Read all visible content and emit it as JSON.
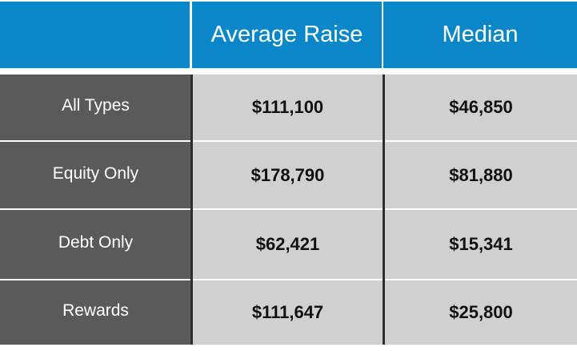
{
  "colors": {
    "header_bg": "#0a87c8",
    "label_bg": "#5a5a5a",
    "value_bg": "#d0d0d0",
    "header_text": "#ffffff",
    "value_text": "#111111"
  },
  "chart_data": {
    "type": "table",
    "columns": [
      "",
      "Average Raise",
      "Median"
    ],
    "rows": [
      {
        "label": "All Types",
        "average_raise": "$111,100",
        "median": "$46,850"
      },
      {
        "label": "Equity Only",
        "average_raise": "$178,790",
        "median": "$81,880"
      },
      {
        "label": "Debt Only",
        "average_raise": "$62,421",
        "median": "$15,341"
      },
      {
        "label": "Rewards",
        "average_raise": "$111,647",
        "median": "$25,800"
      }
    ]
  }
}
